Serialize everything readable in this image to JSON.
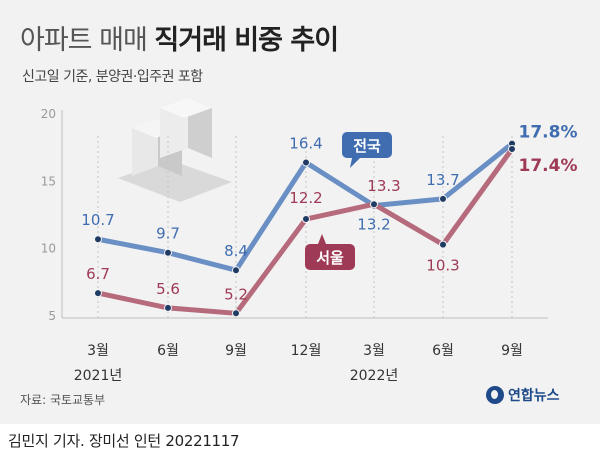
{
  "title_thin": "아파트 매매",
  "title_bold": "직거래 비중 추이",
  "subtitle": "신고일 기준, 분양권·입주권 포함",
  "source": "자료: 국토교통부",
  "logo": "연합뉴스",
  "credit": "김민지 기자. 장미선 인턴  20221117",
  "colors": {
    "national": "#6a8fc4",
    "seoul": "#b56b7c",
    "national_label": "#3f6db0",
    "seoul_label": "#9e3a55"
  },
  "chart_data": {
    "type": "line",
    "categories": [
      "3월",
      "6월",
      "9월",
      "12월",
      "3월",
      "6월",
      "9월"
    ],
    "year_labels": [
      "2021년",
      "2022년"
    ],
    "ylim": [
      5,
      20
    ],
    "yticks": [
      5,
      10,
      15,
      20
    ],
    "grid": false,
    "series": [
      {
        "name": "전국",
        "values": [
          10.7,
          9.7,
          8.4,
          16.4,
          13.2,
          13.7,
          17.8
        ],
        "labels": [
          "10.7",
          "9.7",
          "8.4",
          "16.4",
          "13.2",
          "13.7",
          "17.8%"
        ]
      },
      {
        "name": "서울",
        "values": [
          6.7,
          5.6,
          5.2,
          12.2,
          13.3,
          10.3,
          17.4
        ],
        "labels": [
          "6.7",
          "5.6",
          "5.2",
          "12.2",
          "13.3",
          "10.3",
          "17.4%"
        ]
      }
    ]
  }
}
